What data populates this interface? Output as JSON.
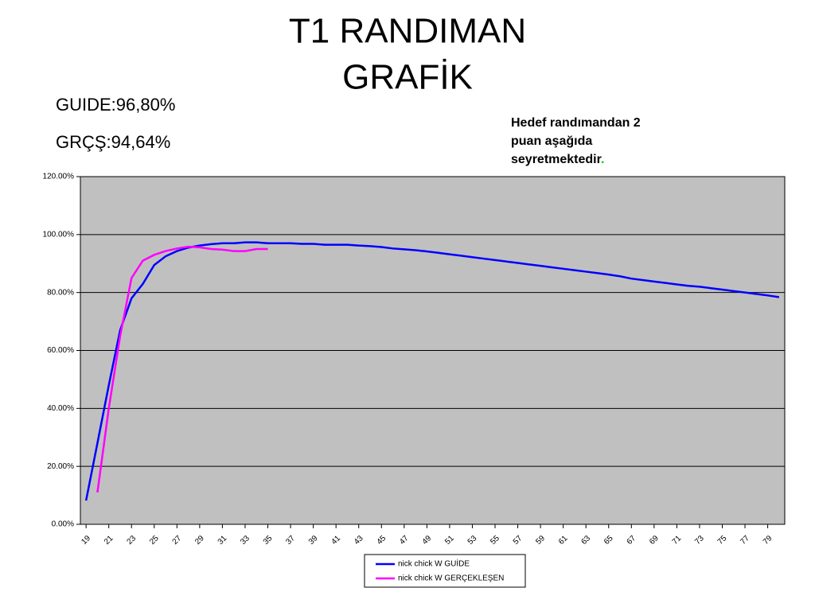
{
  "slide": {
    "title_lines": [
      "T1 RANDIMAN",
      "GRAFİK"
    ],
    "stats": [
      "GUIDE:96,80%",
      "GRÇŞ:94,64%"
    ],
    "annotation_lines": [
      "Hedef randımandan 2",
      "puan aşağıda",
      "seyretmektedir"
    ],
    "annotation_end": "."
  },
  "chart_data": {
    "type": "line",
    "x": [
      19,
      20,
      21,
      22,
      23,
      24,
      25,
      26,
      27,
      28,
      29,
      30,
      31,
      32,
      33,
      34,
      35,
      36,
      37,
      38,
      39,
      40,
      41,
      42,
      43,
      44,
      45,
      46,
      47,
      48,
      49,
      50,
      51,
      52,
      53,
      54,
      55,
      56,
      57,
      58,
      59,
      60,
      61,
      62,
      63,
      64,
      65,
      66,
      67,
      68,
      69,
      70,
      71,
      72,
      73,
      74,
      75,
      76,
      77,
      78,
      79,
      80
    ],
    "xlim": [
      18.5,
      80.5
    ],
    "xticks": [
      19,
      21,
      23,
      25,
      27,
      29,
      31,
      33,
      35,
      37,
      39,
      41,
      43,
      45,
      47,
      49,
      51,
      53,
      55,
      57,
      59,
      61,
      63,
      65,
      67,
      69,
      71,
      73,
      75,
      77,
      79
    ],
    "ylim": [
      0,
      120
    ],
    "yticks": [
      {
        "value": 0,
        "label": "0.00%"
      },
      {
        "value": 20,
        "label": "20.00%"
      },
      {
        "value": 40,
        "label": "40.00%"
      },
      {
        "value": 60,
        "label": "60.00%"
      },
      {
        "value": 80,
        "label": "80.00%"
      },
      {
        "value": 100,
        "label": "100.00%"
      },
      {
        "value": 120,
        "label": "120.00%"
      }
    ],
    "grid": true,
    "series": [
      {
        "name": "nick chick W GUİDE",
        "color": "#0000ff",
        "values": [
          8.2,
          28,
          48,
          67,
          78,
          83,
          89.5,
          92.5,
          94.3,
          95.5,
          96.2,
          96.7,
          97,
          97,
          97.3,
          97.3,
          97,
          97,
          97,
          96.8,
          96.8,
          96.5,
          96.5,
          96.5,
          96.2,
          96,
          95.7,
          95.2,
          94.9,
          94.6,
          94.2,
          93.7,
          93.2,
          92.7,
          92.2,
          91.7,
          91.2,
          90.7,
          90.2,
          89.7,
          89.2,
          88.7,
          88.2,
          87.7,
          87.2,
          86.7,
          86.2,
          85.6,
          84.8,
          84.3,
          83.8,
          83.3,
          82.8,
          82.3,
          82,
          81.5,
          81,
          80.5,
          80,
          79.5,
          79,
          78.4
        ]
      },
      {
        "name": "nick chick W GERÇEKLEŞEN",
        "color": "#ff00ff",
        "values": [
          null,
          11,
          40,
          65,
          85,
          91,
          93,
          94.3,
          95.2,
          95.8,
          95.6,
          95,
          94.8,
          94.3,
          94.3,
          95,
          95,
          null,
          null,
          null,
          null,
          null,
          null,
          null,
          null,
          null,
          null,
          null,
          null,
          null,
          null,
          null,
          null,
          null,
          null,
          null,
          null,
          null,
          null,
          null,
          null,
          null,
          null,
          null,
          null,
          null,
          null,
          null,
          null,
          null,
          null,
          null,
          null,
          null,
          null,
          null,
          null,
          null,
          null,
          null,
          null,
          null
        ]
      }
    ]
  }
}
